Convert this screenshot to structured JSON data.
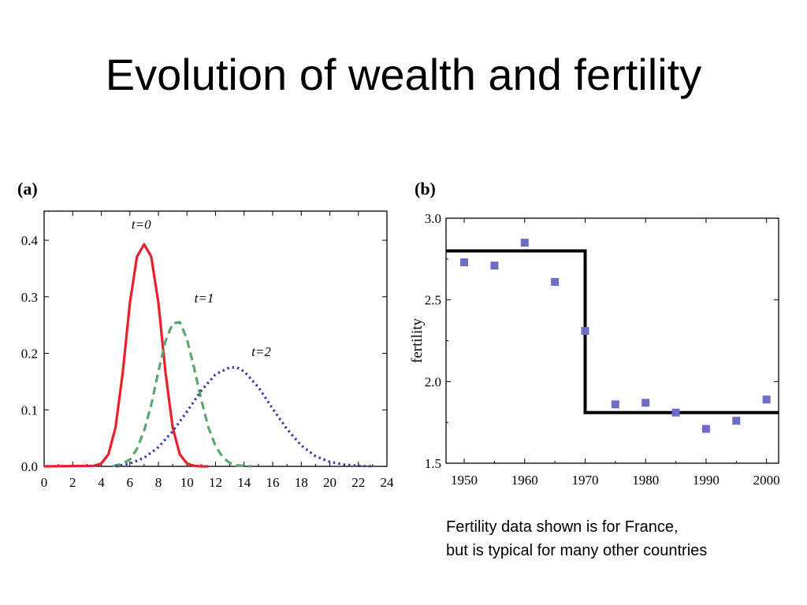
{
  "title": "Evolution of wealth and fertility",
  "footnote": {
    "line1": "Fertility data shown is for France,",
    "line2": "but is typical for many other countries"
  },
  "colors": {
    "t0": "#e8202c",
    "t1": "#5aa870",
    "t2": "#3a3aa8",
    "points": "#6d6dc8",
    "step": "#000000"
  },
  "chart_data": [
    {
      "panel_label": "(a)",
      "type": "line",
      "xlim": [
        0,
        24
      ],
      "ylim": [
        0,
        0.4
      ],
      "xticks": [
        0,
        2,
        4,
        6,
        8,
        10,
        12,
        14,
        16,
        18,
        20,
        22,
        24
      ],
      "yticks": [
        "0.0",
        "0.1",
        "0.2",
        "0.3",
        "0.4"
      ],
      "series": [
        {
          "name": "t=0",
          "style": "solid",
          "x": [
            0,
            3.5,
            4,
            4.5,
            5,
            5.5,
            6,
            6.5,
            7,
            7.5,
            8,
            8.5,
            9,
            9.5,
            10,
            10.5,
            11,
            11.5
          ],
          "y": [
            0,
            0.001,
            0.005,
            0.021,
            0.069,
            0.165,
            0.289,
            0.371,
            0.393,
            0.371,
            0.289,
            0.165,
            0.069,
            0.021,
            0.005,
            0.001,
            0,
            0
          ]
        },
        {
          "name": "t=1",
          "style": "dashed",
          "x": [
            4.8,
            5.5,
            6,
            6.5,
            7,
            7.5,
            8,
            8.5,
            9,
            9.5,
            10,
            10.5,
            11,
            11.5,
            12,
            12.5,
            13,
            13.5,
            14,
            14.5
          ],
          "y": [
            0,
            0.005,
            0.012,
            0.031,
            0.063,
            0.109,
            0.168,
            0.222,
            0.253,
            0.255,
            0.225,
            0.174,
            0.118,
            0.069,
            0.036,
            0.016,
            0.006,
            0.002,
            0.001,
            0
          ]
        },
        {
          "name": "t=2",
          "style": "dotted",
          "x": [
            5,
            6,
            7,
            8,
            9,
            10,
            11,
            12,
            13,
            13.5,
            14,
            15,
            16,
            17,
            18,
            19,
            20,
            21,
            22,
            23
          ],
          "y": [
            0,
            0.005,
            0.015,
            0.034,
            0.062,
            0.097,
            0.134,
            0.163,
            0.175,
            0.175,
            0.168,
            0.14,
            0.102,
            0.066,
            0.037,
            0.018,
            0.008,
            0.003,
            0.001,
            0
          ]
        }
      ]
    },
    {
      "panel_label": "(b)",
      "type": "scatter",
      "ylabel": "fertility",
      "xlim": [
        1947,
        2002
      ],
      "ylim": [
        1.5,
        3.0
      ],
      "xticks": [
        1950,
        1960,
        1970,
        1980,
        1990,
        2000
      ],
      "yticks": [
        "1.5",
        "2.0",
        "2.5",
        "3.0"
      ],
      "points": {
        "x": [
          1950,
          1955,
          1960,
          1965,
          1970,
          1975,
          1980,
          1985,
          1990,
          1995,
          2000
        ],
        "y": [
          2.73,
          2.71,
          2.85,
          2.61,
          2.31,
          1.86,
          1.87,
          1.81,
          1.71,
          1.76,
          1.89
        ]
      },
      "step_line": {
        "x": [
          1947,
          1970,
          1970,
          2002
        ],
        "y": [
          2.8,
          2.8,
          1.81,
          1.81
        ]
      }
    }
  ]
}
